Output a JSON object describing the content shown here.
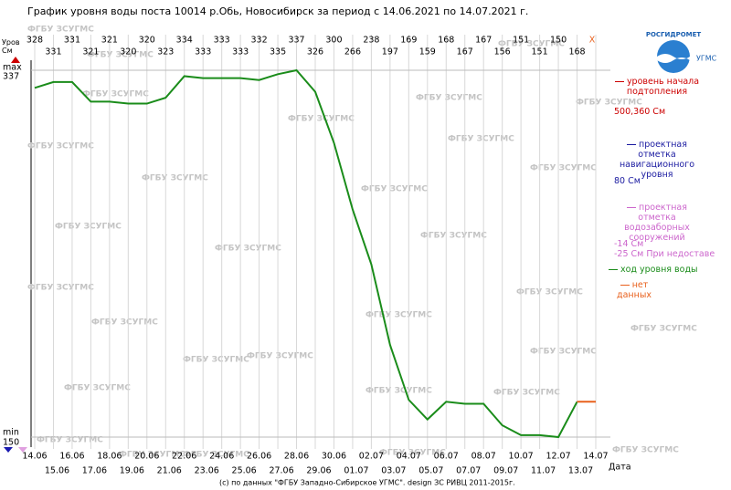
{
  "chart_data": {
    "type": "line",
    "title": "График уровня воды поста 10014 р.Обь, Новосибирск за период с 14.06.2021 по 14.07.2021 г.",
    "y_label": "Уров\nСм",
    "x_label": "Дата",
    "categories": [
      "14.06",
      "15.06",
      "16.06",
      "17.06",
      "18.06",
      "19.06",
      "20.06",
      "21.06",
      "22.06",
      "23.06",
      "24.06",
      "25.06",
      "26.06",
      "27.06",
      "28.06",
      "29.06",
      "30.06",
      "01.07",
      "02.07",
      "03.07",
      "04.07",
      "05.07",
      "06.07",
      "07.07",
      "08.07",
      "09.07",
      "10.07",
      "11.07",
      "12.07",
      "13.07",
      "14.07"
    ],
    "series": [
      {
        "name": "ход уровня воды",
        "color": "#1a8c1a",
        "values": [
          328,
          331,
          331,
          321,
          321,
          320,
          320,
          323,
          334,
          333,
          333,
          333,
          332,
          335,
          337,
          326,
          300,
          266,
          238,
          197,
          169,
          159,
          168,
          167,
          167,
          156,
          151,
          151,
          150,
          168,
          null
        ]
      }
    ],
    "no_data": {
      "name": "нет данных",
      "color": "#e8601c",
      "label": "X"
    },
    "ylim": [
      150,
      337
    ],
    "yticks": [
      150,
      337
    ],
    "ytick_names": [
      "min",
      "max"
    ],
    "reference_levels": [
      {
        "name": "уровень начала\nподтопления",
        "color": "#cc0000",
        "label": "500,360 См"
      },
      {
        "name": "проектная отметка\nнавигационного\nуровня",
        "color": "#1a1aa0",
        "label": "80 См"
      },
      {
        "name": "проектная отметка\nводозаборных\nсооружений",
        "color": "#cc66cc",
        "label": "-14 См\n-25 См При недоставе"
      }
    ],
    "watermark": "ФГБУ ЗСУГМС",
    "logo": {
      "name": "РОСГИДРОМЕТ",
      "sub": "УГМС"
    },
    "credit": "(с) по данных \"ФГБУ Западно-Сибирское УГМС\". design ЗС РИВЦ 2011-2015г."
  }
}
